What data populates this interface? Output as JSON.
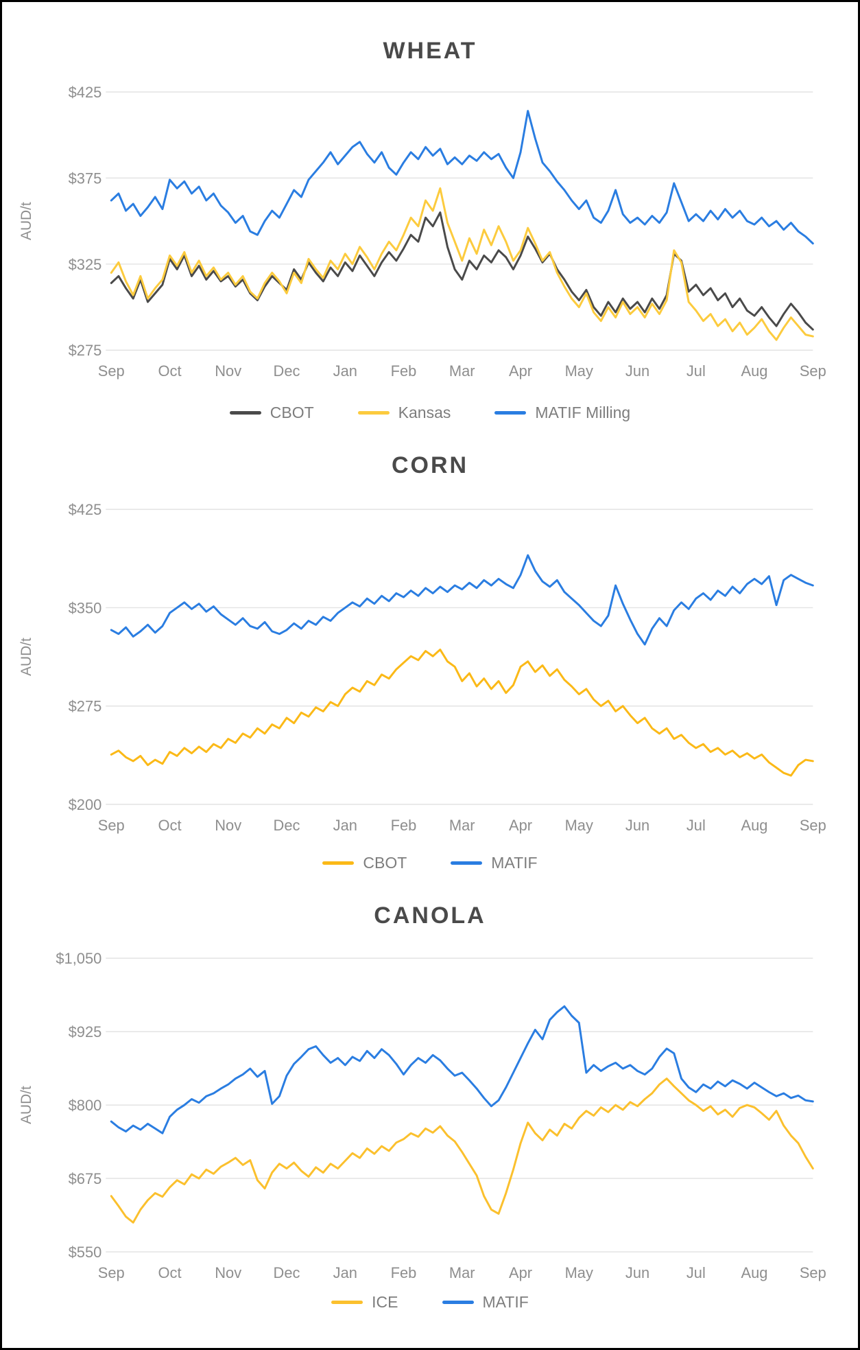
{
  "chart_data": [
    {
      "type": "line",
      "title": "WHEAT",
      "ylabel": "AUD/t",
      "ylim": [
        275,
        425
      ],
      "yticks": [
        275,
        325,
        375,
        425
      ],
      "ytick_labels": [
        "$275",
        "$325",
        "$375",
        "$425"
      ],
      "categories": [
        "Sep",
        "Oct",
        "Nov",
        "Dec",
        "Jan",
        "Feb",
        "Mar",
        "Apr",
        "May",
        "Jun",
        "Jul",
        "Aug",
        "Sep"
      ],
      "grid": "horizontal",
      "legend_position": "bottom",
      "series": [
        {
          "name": "CBOT",
          "color": "#4a4a4a",
          "values": [
            314,
            318,
            311,
            305,
            316,
            303,
            308,
            313,
            328,
            322,
            330,
            318,
            324,
            316,
            321,
            315,
            318,
            312,
            316,
            308,
            304,
            312,
            318,
            314,
            310,
            322,
            316,
            326,
            320,
            315,
            323,
            318,
            326,
            321,
            330,
            324,
            318,
            326,
            332,
            327,
            334,
            342,
            338,
            352,
            347,
            355,
            335,
            322,
            316,
            327,
            322,
            330,
            326,
            333,
            329,
            322,
            330,
            341,
            334,
            326,
            331,
            322,
            316,
            309,
            304,
            310,
            300,
            295,
            303,
            297,
            305,
            299,
            303,
            297,
            305,
            299,
            307,
            331,
            327,
            309,
            313,
            307,
            311,
            304,
            308,
            300,
            305,
            298,
            295,
            300,
            294,
            289,
            296,
            302,
            297,
            291,
            287
          ]
        },
        {
          "name": "Kansas",
          "color": "#fccb3e",
          "values": [
            320,
            326,
            315,
            307,
            318,
            305,
            311,
            316,
            330,
            324,
            332,
            320,
            327,
            318,
            323,
            316,
            320,
            313,
            318,
            309,
            305,
            314,
            320,
            315,
            308,
            320,
            314,
            328,
            322,
            317,
            327,
            322,
            331,
            325,
            335,
            329,
            322,
            331,
            338,
            333,
            342,
            352,
            347,
            362,
            356,
            369,
            349,
            338,
            327,
            340,
            331,
            345,
            336,
            347,
            338,
            327,
            333,
            346,
            337,
            327,
            332,
            320,
            312,
            305,
            300,
            308,
            297,
            292,
            300,
            294,
            303,
            296,
            300,
            294,
            302,
            296,
            304,
            333,
            326,
            303,
            298,
            292,
            296,
            289,
            293,
            286,
            291,
            284,
            288,
            293,
            286,
            281,
            288,
            294,
            289,
            284,
            283
          ]
        },
        {
          "name": "MATIF Milling",
          "color": "#2a7de1",
          "values": [
            362,
            366,
            356,
            360,
            353,
            358,
            364,
            357,
            374,
            369,
            373,
            366,
            370,
            362,
            366,
            359,
            355,
            349,
            353,
            344,
            342,
            350,
            356,
            352,
            360,
            368,
            364,
            374,
            379,
            384,
            390,
            383,
            388,
            393,
            396,
            389,
            384,
            390,
            381,
            377,
            384,
            390,
            386,
            393,
            388,
            392,
            383,
            387,
            383,
            388,
            385,
            390,
            386,
            389,
            381,
            375,
            390,
            414,
            398,
            384,
            379,
            373,
            368,
            362,
            357,
            362,
            352,
            349,
            356,
            368,
            354,
            349,
            352,
            348,
            353,
            349,
            355,
            372,
            361,
            350,
            354,
            350,
            356,
            351,
            357,
            352,
            356,
            350,
            348,
            352,
            347,
            350,
            345,
            349,
            344,
            341,
            337
          ]
        }
      ]
    },
    {
      "type": "line",
      "title": "CORN",
      "ylabel": "AUD/t",
      "ylim": [
        200,
        425
      ],
      "yticks": [
        200,
        275,
        350,
        425
      ],
      "ytick_labels": [
        "$200",
        "$275",
        "$350",
        "$425"
      ],
      "categories": [
        "Sep",
        "Oct",
        "Nov",
        "Dec",
        "Jan",
        "Feb",
        "Mar",
        "Apr",
        "May",
        "Jun",
        "Jul",
        "Aug",
        "Sep"
      ],
      "grid": "horizontal",
      "legend_position": "bottom",
      "series": [
        {
          "name": "CBOT",
          "color": "#fbb917",
          "values": [
            238,
            241,
            236,
            233,
            237,
            230,
            234,
            231,
            240,
            237,
            243,
            239,
            244,
            240,
            246,
            243,
            250,
            247,
            254,
            251,
            258,
            254,
            261,
            258,
            266,
            262,
            270,
            267,
            274,
            271,
            278,
            275,
            284,
            289,
            286,
            294,
            291,
            299,
            296,
            303,
            308,
            313,
            310,
            317,
            313,
            318,
            309,
            305,
            294,
            300,
            290,
            296,
            288,
            294,
            285,
            291,
            305,
            309,
            301,
            306,
            298,
            303,
            295,
            290,
            284,
            288,
            280,
            275,
            279,
            271,
            275,
            268,
            262,
            266,
            258,
            254,
            258,
            250,
            253,
            247,
            243,
            246,
            240,
            243,
            238,
            241,
            236,
            239,
            235,
            238,
            232,
            228,
            224,
            222,
            230,
            234,
            233
          ]
        },
        {
          "name": "MATIF",
          "color": "#2a7de1",
          "values": [
            333,
            330,
            335,
            328,
            332,
            337,
            331,
            336,
            346,
            350,
            354,
            349,
            353,
            347,
            351,
            345,
            341,
            337,
            342,
            336,
            334,
            339,
            332,
            330,
            333,
            338,
            334,
            340,
            337,
            343,
            340,
            346,
            350,
            354,
            351,
            357,
            353,
            359,
            355,
            361,
            358,
            363,
            359,
            365,
            361,
            366,
            362,
            367,
            364,
            369,
            365,
            371,
            367,
            372,
            368,
            365,
            375,
            390,
            378,
            370,
            366,
            371,
            362,
            357,
            352,
            346,
            340,
            336,
            344,
            367,
            353,
            341,
            330,
            322,
            334,
            342,
            336,
            348,
            354,
            349,
            357,
            361,
            356,
            363,
            359,
            366,
            361,
            368,
            372,
            368,
            374,
            352,
            371,
            375,
            372,
            369,
            367
          ]
        }
      ]
    },
    {
      "type": "line",
      "title": "CANOLA",
      "ylabel": "AUD/t",
      "ylim": [
        550,
        1050
      ],
      "yticks": [
        550,
        675,
        800,
        925,
        1050
      ],
      "ytick_labels": [
        "$550",
        "$675",
        "$800",
        "$925",
        "$1,050"
      ],
      "categories": [
        "Sep",
        "Oct",
        "Nov",
        "Dec",
        "Jan",
        "Feb",
        "Mar",
        "Apr",
        "May",
        "Jun",
        "Jul",
        "Aug",
        "Sep"
      ],
      "grid": "horizontal",
      "legend_position": "bottom",
      "series": [
        {
          "name": "ICE",
          "color": "#fbc02d",
          "values": [
            645,
            628,
            610,
            600,
            622,
            638,
            650,
            644,
            660,
            672,
            665,
            682,
            675,
            690,
            683,
            695,
            702,
            710,
            698,
            706,
            672,
            658,
            685,
            700,
            692,
            702,
            688,
            678,
            694,
            685,
            700,
            692,
            705,
            718,
            710,
            726,
            717,
            730,
            722,
            736,
            742,
            752,
            746,
            760,
            753,
            764,
            748,
            738,
            720,
            700,
            680,
            645,
            622,
            615,
            650,
            690,
            735,
            770,
            752,
            740,
            758,
            748,
            768,
            760,
            778,
            790,
            782,
            796,
            788,
            800,
            792,
            805,
            798,
            810,
            820,
            835,
            845,
            832,
            820,
            808,
            800,
            790,
            798,
            784,
            792,
            780,
            795,
            800,
            796,
            786,
            775,
            790,
            765,
            748,
            735,
            712,
            692
          ]
        },
        {
          "name": "MATIF",
          "color": "#2a7de1",
          "values": [
            772,
            762,
            755,
            765,
            758,
            768,
            760,
            752,
            780,
            792,
            800,
            810,
            804,
            815,
            820,
            828,
            835,
            845,
            852,
            862,
            848,
            858,
            802,
            815,
            850,
            870,
            882,
            895,
            900,
            885,
            872,
            880,
            868,
            882,
            875,
            892,
            880,
            895,
            885,
            870,
            852,
            868,
            880,
            872,
            885,
            876,
            862,
            850,
            855,
            842,
            828,
            812,
            798,
            808,
            830,
            855,
            880,
            905,
            928,
            912,
            945,
            958,
            968,
            952,
            940,
            855,
            868,
            858,
            866,
            872,
            862,
            868,
            858,
            852,
            862,
            882,
            896,
            888,
            845,
            830,
            822,
            835,
            828,
            840,
            832,
            842,
            836,
            828,
            838,
            830,
            822,
            815,
            820,
            812,
            816,
            808,
            806
          ]
        }
      ]
    }
  ]
}
